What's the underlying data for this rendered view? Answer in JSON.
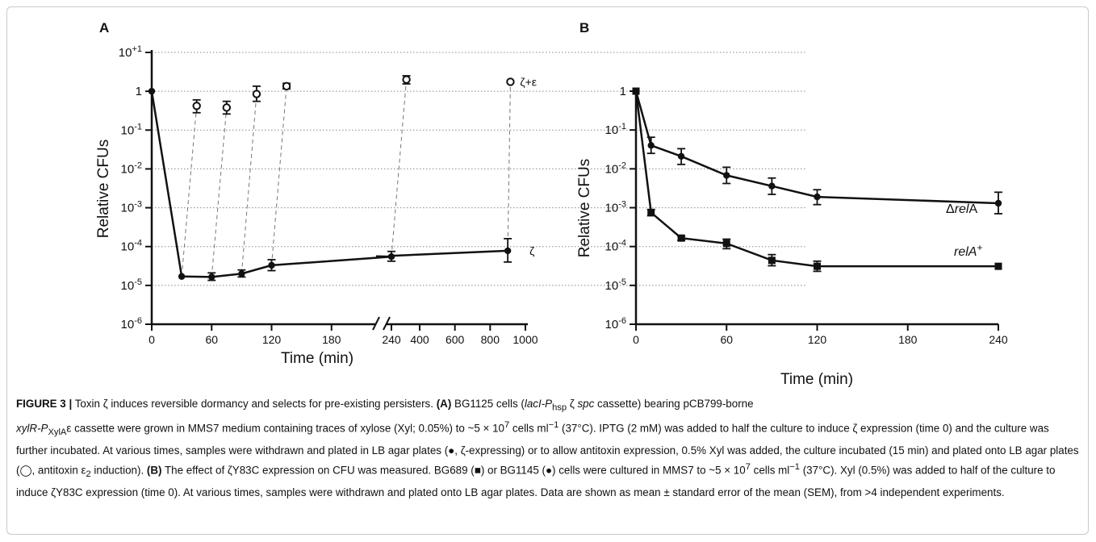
{
  "panels": [
    {
      "label": "A",
      "ylabel": "Relative CFUs",
      "xlabel": "Time (min)"
    },
    {
      "label": "B",
      "ylabel": "Relative CFUs",
      "xlabel": "Time (min)"
    }
  ],
  "chart_data": [
    {
      "type": "line",
      "panel": "A",
      "xlabel": "Time (min)",
      "ylabel": "Relative CFUs",
      "yscale": "log",
      "ylim": [
        1e-06,
        10
      ],
      "yticks": [
        "10-6",
        "10-5",
        "10-4",
        "10-3",
        "10-2",
        "10-1",
        "1",
        "10+1"
      ],
      "x_axis_broken": true,
      "x_segment_1": {
        "range": [
          0,
          260
        ],
        "ticks": [
          "0",
          "60",
          "120",
          "180",
          "240"
        ]
      },
      "x_segment_2": {
        "range": [
          300,
          1000
        ],
        "ticks": [
          "400",
          "600",
          "800",
          "1000"
        ]
      },
      "grid": "horizontal dotted",
      "series": [
        {
          "name": "ζ",
          "marker": "filled circle",
          "line": "solid",
          "points": [
            {
              "x": 0,
              "y": 1.0,
              "err": null
            },
            {
              "x": 30,
              "y": 1.7e-05,
              "err": null
            },
            {
              "x": 60,
              "y": 1.65e-05,
              "err_low": 1.35e-05,
              "err_high": 2.1e-05
            },
            {
              "x": 90,
              "y": 2e-05,
              "err_low": 1.65e-05,
              "err_high": 2.5e-05
            },
            {
              "x": 120,
              "y": 3.3e-05,
              "err_low": 2.4e-05,
              "err_high": 4.6e-05
            },
            {
              "x": 240,
              "y": 5.5e-05,
              "err_low": 4.2e-05,
              "err_high": 7.5e-05
            },
            {
              "x": 900,
              "y": 7.8e-05,
              "err_low": 4e-05,
              "err_high": 0.00016
            }
          ]
        },
        {
          "name": "ζ+ε",
          "marker": "open circle",
          "line": "none (dashed connectors to ζ points)",
          "points": [
            {
              "x": 45,
              "y": 0.42,
              "err_low": 0.28,
              "err_high": 0.6,
              "from_x": 30
            },
            {
              "x": 75,
              "y": 0.38,
              "err_low": 0.26,
              "err_high": 0.55,
              "from_x": 60
            },
            {
              "x": 105,
              "y": 0.85,
              "err_low": 0.55,
              "err_high": 1.35,
              "from_x": 90
            },
            {
              "x": 135,
              "y": 1.35,
              "err_low": 1.15,
              "err_high": 1.6,
              "from_x": 120
            },
            {
              "x": 255,
              "y": 2.0,
              "err_low": 1.55,
              "err_high": 2.5,
              "from_x": 240
            },
            {
              "x": 915,
              "y": 1.75,
              "err": null,
              "from_x": 900
            }
          ]
        }
      ]
    },
    {
      "type": "line",
      "panel": "B",
      "xlabel": "Time (min)",
      "ylabel": "Relative CFUs",
      "yscale": "log",
      "ylim": [
        1e-06,
        1
      ],
      "yticks": [
        "10-6",
        "10-5",
        "10-4",
        "10-3",
        "10-2",
        "10-1",
        "1"
      ],
      "xlim": [
        0,
        240
      ],
      "xticks": [
        "0",
        "60",
        "120",
        "180",
        "240"
      ],
      "grid": "none",
      "series": [
        {
          "name": "ΔrelA",
          "marker": "filled circle",
          "points": [
            {
              "x": 0,
              "y": 1.0
            },
            {
              "x": 10,
              "y": 0.04,
              "err_low": 0.025,
              "err_high": 0.065
            },
            {
              "x": 30,
              "y": 0.021,
              "err_low": 0.013,
              "err_high": 0.033
            },
            {
              "x": 60,
              "y": 0.0068,
              "err_low": 0.0042,
              "err_high": 0.011
            },
            {
              "x": 90,
              "y": 0.0036,
              "err_low": 0.0022,
              "err_high": 0.0058
            },
            {
              "x": 120,
              "y": 0.0019,
              "err_low": 0.0012,
              "err_high": 0.0029
            },
            {
              "x": 240,
              "y": 0.0013,
              "err_low": 0.0007,
              "err_high": 0.0025
            }
          ]
        },
        {
          "name": "relA+",
          "marker": "filled square",
          "points": [
            {
              "x": 0,
              "y": 1.0
            },
            {
              "x": 10,
              "y": 0.00075,
              "err_low": 0.00062,
              "err_high": 0.0009
            },
            {
              "x": 30,
              "y": 0.000165,
              "err_low": 0.000145,
              "err_high": 0.000185
            },
            {
              "x": 60,
              "y": 0.00012,
              "err_low": 8.8e-05,
              "err_high": 0.000155
            },
            {
              "x": 90,
              "y": 4.4e-05,
              "err_low": 3.2e-05,
              "err_high": 6.2e-05
            },
            {
              "x": 120,
              "y": 3.1e-05,
              "err_low": 2.3e-05,
              "err_high": 4.2e-05
            },
            {
              "x": 240,
              "y": 3.1e-05,
              "err": null
            }
          ]
        }
      ]
    }
  ],
  "caption": {
    "figure_label": "FIGURE 3 |",
    "title": " Toxin ζ induces reversible dormancy and selects for pre-existing persisters. ",
    "part_a_label": "(A)",
    "part_a_1": " BG1125 cells (",
    "laci": "lacI-P",
    "hsp": "hsp",
    "zeta_spc": " ζ ",
    "spc": "spc",
    "part_a_2": " cassette) bearing pCB799-borne",
    "xylr": "xylR-P",
    "xyla": "XylA",
    "part_a_3": "ε cassette were grown in MMS7 medium containing traces of xylose (Xyl; 0.05%) to ~5 × 10",
    "exp7a": "7",
    "part_a_4": " cells ml",
    "exp_neg1a": "−1",
    "part_a_5": " (37°C). IPTG (2 mM) was added to half the culture to induce ζ expression (time 0) and the culture was further incubated. At various times, samples were withdrawn and plated in LB agar plates (●, ζ-expressing) or to allow antitoxin expression, 0.5% Xyl was added, the culture incubated (15 min) and plated onto LB agar plates (◯, antitoxin ε",
    "eps2": "2",
    "part_a_6": " induction). ",
    "part_b_label": "(B)",
    "part_b_1": " The effect of ζY83C expression on CFU was measured. BG689 (■) or BG1145 (●) cells were cultured in MMS7 to ~5 × 10",
    "exp7b": "7",
    "part_b_2": " cells ml",
    "exp_neg1b": "−1",
    "part_b_3": " (37°C). Xyl (0.5%) was added to half of the culture to induce ζY83C expression (time 0). At various times, samples were withdrawn and plated onto LB agar plates. Data are shown as mean ± standard error of the mean (SEM), from >4 independent experiments."
  }
}
